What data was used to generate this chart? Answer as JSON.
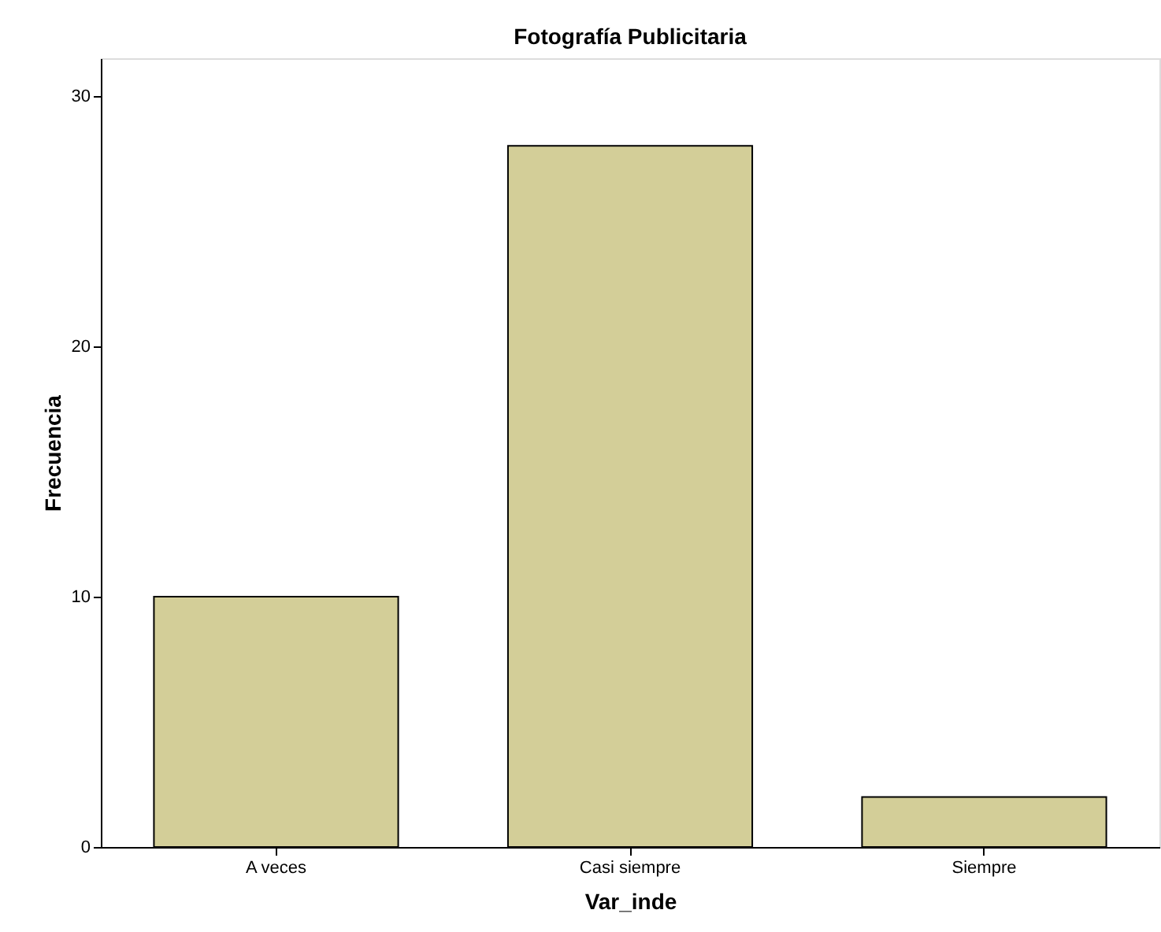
{
  "chart_data": {
    "type": "bar",
    "title": "Fotografía Publicitaria",
    "xlabel": "Var_inde",
    "ylabel": "Frecuencia",
    "categories": [
      "A veces",
      "Casi siempre",
      "Siempre"
    ],
    "values": [
      10,
      28,
      2
    ],
    "color": "#d3ce98",
    "ylim": [
      0,
      31.5
    ],
    "yticks": [
      0,
      10,
      20,
      30
    ],
    "grid": false
  }
}
